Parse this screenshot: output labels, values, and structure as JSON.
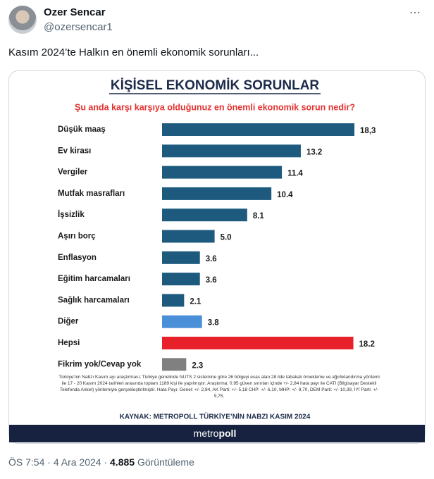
{
  "tweet": {
    "author": "Ozer Sencar",
    "handle": "@ozersencar1",
    "text": "Kasım 2024’te Halkın en önemli ekonomik sorunları...",
    "time": "ÖS 7:54",
    "date": "4 Ara 2024",
    "separator": "·",
    "views": "4.885",
    "views_label": "Görüntüleme"
  },
  "chart_data": {
    "type": "hbar",
    "title": "KİŞİSEL EKONOMİK SORUNLAR",
    "subtitle": "Şu anda karşı karşıya olduğunuz en önemli ekonomik sorun nedir?",
    "categories": [
      "Düşük maaş",
      "Ev kirası",
      "Vergiler",
      "Mutfak masrafları",
      "İşsizlik",
      "Aşırı borç",
      "Enflasyon",
      "Eğitim harcamaları",
      "Sağlık harcamaları",
      "Diğer",
      "Hepsi",
      "Fikrim yok/Cevap yok"
    ],
    "values": [
      18.3,
      13.2,
      11.4,
      10.4,
      8.1,
      5.0,
      3.6,
      3.6,
      2.1,
      3.8,
      18.2,
      2.3
    ],
    "value_labels": [
      "18,3",
      "13.2",
      "11.4",
      "10.4",
      "8.1",
      "5.0",
      "3.6",
      "3.6",
      "2.1",
      "3.8",
      "18.2",
      "2.3"
    ],
    "colors": [
      "#1d5a7e",
      "#1d5a7e",
      "#1d5a7e",
      "#1d5a7e",
      "#1d5a7e",
      "#1d5a7e",
      "#1d5a7e",
      "#1d5a7e",
      "#1d5a7e",
      "#4a90d9",
      "#e8202a",
      "#808080"
    ],
    "note": "Türkiye'nin Nabzı Kasım ayı araştırması; Türkiye genelinde NUTS 2 sistemine göre 26 bölgeyi esas alan 28 ilde tabakalı örnekleme ve ağırlıklandırma yöntemi ile 17 - 20 Kasım 2024 tarihleri arasında toplam 1189 kişi ile yapılmıştır. Araştırma; 0,95 güven sınırları içinde +/- 2,84 hata payı ile CATI (Bilgisayar Destekli Telefonda Anket) yöntemiyle gerçekleştirilmiştir. Hata Payı: Genel: +/- 2,84, AK Parti: +/- 5,18 CHP: +/- 6,10, MHP: +/- 9,70, DEM Parti: +/- 10,39, İYİ Parti: +/- 9,75.",
    "source": "KAYNAK: METROPOLL TÜRKİYE’NİN NABZI KASIM 2024",
    "logo": [
      "metro",
      "poll"
    ]
  }
}
